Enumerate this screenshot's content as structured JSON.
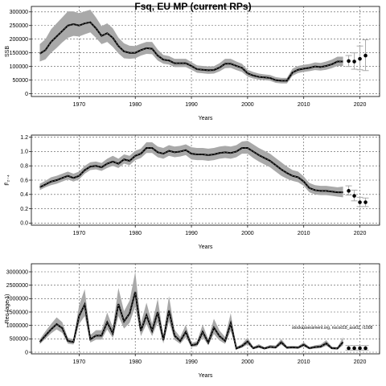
{
  "title": "Fsq, EU MP (current RPs)",
  "watermark": "stockassessment.org, nscod18_ass02, r1008",
  "chart_data": [
    {
      "type": "line",
      "name": "ssb",
      "ylabel": "SSB",
      "xlabel": "Years",
      "xlim": [
        1961.5,
        2023.5
      ],
      "ylim": [
        -10000,
        320000
      ],
      "xticks": [
        1970,
        1980,
        1990,
        2000,
        2010,
        2020
      ],
      "yticks": [
        0,
        50000,
        100000,
        150000,
        200000,
        250000,
        300000
      ],
      "ytick_labels": [
        "0",
        "50000",
        "100000",
        "150000",
        "200000",
        "250000",
        "300000"
      ],
      "grid": true,
      "band": "confidence interval (grey)",
      "x": [
        1963,
        1964,
        1965,
        1966,
        1967,
        1968,
        1969,
        1970,
        1971,
        1972,
        1973,
        1974,
        1975,
        1976,
        1977,
        1978,
        1979,
        1980,
        1981,
        1982,
        1983,
        1984,
        1985,
        1986,
        1987,
        1988,
        1989,
        1990,
        1991,
        1992,
        1993,
        1994,
        1995,
        1996,
        1997,
        1998,
        1999,
        2000,
        2001,
        2002,
        2003,
        2004,
        2005,
        2006,
        2007,
        2008,
        2009,
        2010,
        2011,
        2012,
        2013,
        2014,
        2015,
        2016,
        2017
      ],
      "y": [
        147000,
        160000,
        190000,
        210000,
        230000,
        250000,
        255000,
        250000,
        258000,
        262000,
        240000,
        212000,
        222000,
        205000,
        175000,
        155000,
        150000,
        150000,
        160000,
        167000,
        165000,
        140000,
        125000,
        122000,
        112000,
        112000,
        112000,
        102000,
        90000,
        88000,
        86000,
        87000,
        96000,
        110000,
        110000,
        102000,
        95000,
        75000,
        67000,
        62000,
        60000,
        58000,
        50000,
        48000,
        48000,
        78000,
        88000,
        92000,
        95000,
        100000,
        98000,
        102000,
        108000,
        118000,
        118000
      ],
      "lower": [
        118000,
        126000,
        150000,
        168000,
        188000,
        205000,
        212000,
        210000,
        218000,
        225000,
        205000,
        182000,
        190000,
        172000,
        148000,
        130000,
        128000,
        130000,
        140000,
        146000,
        145000,
        122000,
        110000,
        107000,
        98000,
        98000,
        98000,
        88000,
        77000,
        75000,
        73000,
        74000,
        82000,
        94000,
        95000,
        87000,
        80000,
        63000,
        56000,
        52000,
        50000,
        48000,
        40000,
        38000,
        38000,
        66000,
        76000,
        80000,
        83000,
        87000,
        85000,
        88000,
        94000,
        102000,
        102000
      ],
      "upper": [
        182000,
        200000,
        236000,
        258000,
        280000,
        302000,
        302000,
        295000,
        302000,
        308000,
        280000,
        248000,
        258000,
        240000,
        206000,
        185000,
        176000,
        175000,
        183000,
        190000,
        190000,
        162000,
        142000,
        138000,
        128000,
        128000,
        128000,
        116000,
        104000,
        102000,
        100000,
        101000,
        112000,
        128000,
        128000,
        118000,
        110000,
        88000,
        80000,
        74000,
        71000,
        69000,
        61000,
        58000,
        58000,
        92000,
        102000,
        106000,
        109000,
        115000,
        113000,
        118000,
        125000,
        136000,
        136000
      ],
      "projection": {
        "x": [
          2018,
          2019,
          2020,
          2021
        ],
        "y": [
          120000,
          118000,
          128000,
          140000
        ],
        "lower": [
          100000,
          90000,
          88000,
          85000
        ],
        "upper": [
          140000,
          150000,
          175000,
          198000
        ]
      }
    },
    {
      "type": "line",
      "name": "fbar",
      "ylabel": "F̄₂₋₄",
      "xlabel": "Years",
      "xlim": [
        1961.5,
        2023.5
      ],
      "ylim": [
        -0.03,
        1.23
      ],
      "xticks": [
        1970,
        1980,
        1990,
        2000,
        2010,
        2020
      ],
      "yticks": [
        0.0,
        0.2,
        0.4,
        0.6,
        0.8,
        1.0,
        1.2
      ],
      "ytick_labels": [
        "0.0",
        "0.2",
        "0.4",
        "0.6",
        "0.8",
        "1.0",
        "1.2"
      ],
      "grid": true,
      "band": "confidence interval (grey)",
      "x": [
        1963,
        1964,
        1965,
        1966,
        1967,
        1968,
        1969,
        1970,
        1971,
        1972,
        1973,
        1974,
        1975,
        1976,
        1977,
        1978,
        1979,
        1980,
        1981,
        1982,
        1983,
        1984,
        1985,
        1986,
        1987,
        1988,
        1989,
        1990,
        1991,
        1992,
        1993,
        1994,
        1995,
        1996,
        1997,
        1998,
        1999,
        2000,
        2001,
        2002,
        2003,
        2004,
        2005,
        2006,
        2007,
        2008,
        2009,
        2010,
        2011,
        2012,
        2013,
        2014,
        2015,
        2016,
        2017
      ],
      "y": [
        0.5,
        0.54,
        0.58,
        0.6,
        0.63,
        0.66,
        0.63,
        0.66,
        0.74,
        0.79,
        0.8,
        0.78,
        0.83,
        0.86,
        0.83,
        0.89,
        0.87,
        0.94,
        0.97,
        1.05,
        1.05,
        0.99,
        0.97,
        1.01,
        0.99,
        1.0,
        1.02,
        0.97,
        0.96,
        0.96,
        0.95,
        0.96,
        0.98,
        0.99,
        0.98,
        1.0,
        1.05,
        1.05,
        1.0,
        0.95,
        0.91,
        0.87,
        0.81,
        0.75,
        0.7,
        0.66,
        0.64,
        0.58,
        0.49,
        0.46,
        0.45,
        0.45,
        0.44,
        0.43,
        0.43
      ],
      "lower": [
        0.46,
        0.5,
        0.53,
        0.55,
        0.58,
        0.61,
        0.58,
        0.61,
        0.69,
        0.74,
        0.75,
        0.73,
        0.77,
        0.8,
        0.77,
        0.83,
        0.81,
        0.88,
        0.91,
        0.98,
        0.98,
        0.92,
        0.9,
        0.94,
        0.92,
        0.93,
        0.95,
        0.89,
        0.88,
        0.88,
        0.87,
        0.88,
        0.9,
        0.91,
        0.9,
        0.92,
        0.97,
        0.97,
        0.91,
        0.86,
        0.82,
        0.78,
        0.72,
        0.66,
        0.62,
        0.59,
        0.57,
        0.52,
        0.43,
        0.4,
        0.39,
        0.39,
        0.38,
        0.37,
        0.36
      ],
      "upper": [
        0.55,
        0.59,
        0.64,
        0.66,
        0.69,
        0.72,
        0.69,
        0.72,
        0.8,
        0.85,
        0.86,
        0.84,
        0.9,
        0.94,
        0.9,
        0.96,
        0.94,
        1.01,
        1.04,
        1.13,
        1.13,
        1.07,
        1.05,
        1.09,
        1.07,
        1.08,
        1.1,
        1.06,
        1.05,
        1.05,
        1.04,
        1.05,
        1.07,
        1.08,
        1.07,
        1.09,
        1.14,
        1.15,
        1.1,
        1.05,
        1.01,
        0.97,
        0.91,
        0.85,
        0.79,
        0.74,
        0.72,
        0.65,
        0.56,
        0.53,
        0.52,
        0.52,
        0.51,
        0.5,
        0.51
      ],
      "projection": {
        "x": [
          2018,
          2019,
          2020,
          2021
        ],
        "y": [
          0.45,
          0.38,
          0.29,
          0.29
        ],
        "lower": [
          0.39,
          0.31,
          0.23,
          0.23
        ],
        "upper": [
          0.52,
          0.46,
          0.36,
          0.35
        ]
      }
    },
    {
      "type": "line",
      "name": "recruitment",
      "ylabel": "Rec (age 1)",
      "xlabel": "Years",
      "xlim": [
        1961.5,
        2023.5
      ],
      "ylim": [
        -60000,
        3300000
      ],
      "xticks": [
        1970,
        1980,
        1990,
        2000,
        2010,
        2020
      ],
      "yticks": [
        0,
        500000,
        1000000,
        1500000,
        2000000,
        2500000,
        3000000
      ],
      "ytick_labels": [
        "0",
        "500000",
        "1000000",
        "1500000",
        "2000000",
        "2500000",
        "3000000"
      ],
      "grid": true,
      "band": "confidence interval (grey)",
      "x": [
        1963,
        1964,
        1965,
        1966,
        1967,
        1968,
        1969,
        1970,
        1971,
        1972,
        1973,
        1974,
        1975,
        1976,
        1977,
        1978,
        1979,
        1980,
        1981,
        1982,
        1983,
        1984,
        1985,
        1986,
        1987,
        1988,
        1989,
        1990,
        1991,
        1992,
        1993,
        1994,
        1995,
        1996,
        1997,
        1998,
        1999,
        2000,
        2001,
        2002,
        2003,
        2004,
        2005,
        2006,
        2007,
        2008,
        2009,
        2010,
        2011,
        2012,
        2013,
        2014,
        2015,
        2016,
        2017
      ],
      "y": [
        380000,
        620000,
        850000,
        1050000,
        900000,
        420000,
        380000,
        1350000,
        1780000,
        480000,
        620000,
        620000,
        1120000,
        700000,
        1800000,
        1150000,
        1450000,
        2250000,
        800000,
        1380000,
        800000,
        1500000,
        450000,
        1560000,
        620000,
        420000,
        760000,
        260000,
        300000,
        760000,
        360000,
        920000,
        600000,
        420000,
        1080000,
        140000,
        230000,
        400000,
        150000,
        220000,
        140000,
        200000,
        180000,
        370000,
        170000,
        180000,
        170000,
        280000,
        150000,
        190000,
        210000,
        330000,
        150000,
        140000,
        380000
      ],
      "lower": [
        300000,
        500000,
        700000,
        850000,
        720000,
        320000,
        290000,
        1050000,
        1350000,
        360000,
        470000,
        470000,
        850000,
        530000,
        1350000,
        880000,
        1100000,
        1700000,
        600000,
        1050000,
        600000,
        1120000,
        330000,
        1150000,
        460000,
        310000,
        560000,
        190000,
        220000,
        560000,
        260000,
        680000,
        440000,
        310000,
        800000,
        100000,
        170000,
        290000,
        110000,
        160000,
        100000,
        150000,
        130000,
        280000,
        130000,
        140000,
        130000,
        210000,
        110000,
        140000,
        150000,
        240000,
        110000,
        100000,
        260000
      ],
      "upper": [
        480000,
        780000,
        1050000,
        1300000,
        1120000,
        540000,
        490000,
        1750000,
        2350000,
        640000,
        820000,
        820000,
        1480000,
        930000,
        2400000,
        1530000,
        1930000,
        3000000,
        1080000,
        1850000,
        1070000,
        2000000,
        610000,
        2100000,
        840000,
        570000,
        1020000,
        350000,
        410000,
        1030000,
        490000,
        1250000,
        810000,
        570000,
        1460000,
        190000,
        310000,
        550000,
        200000,
        300000,
        190000,
        270000,
        250000,
        490000,
        230000,
        240000,
        230000,
        370000,
        200000,
        260000,
        290000,
        450000,
        210000,
        190000,
        560000
      ],
      "projection": {
        "x": [
          2018,
          2019,
          2020,
          2021
        ],
        "y": [
          150000,
          150000,
          150000,
          150000
        ],
        "lower": [
          80000,
          80000,
          80000,
          80000
        ],
        "upper": [
          250000,
          250000,
          250000,
          250000
        ]
      }
    }
  ]
}
